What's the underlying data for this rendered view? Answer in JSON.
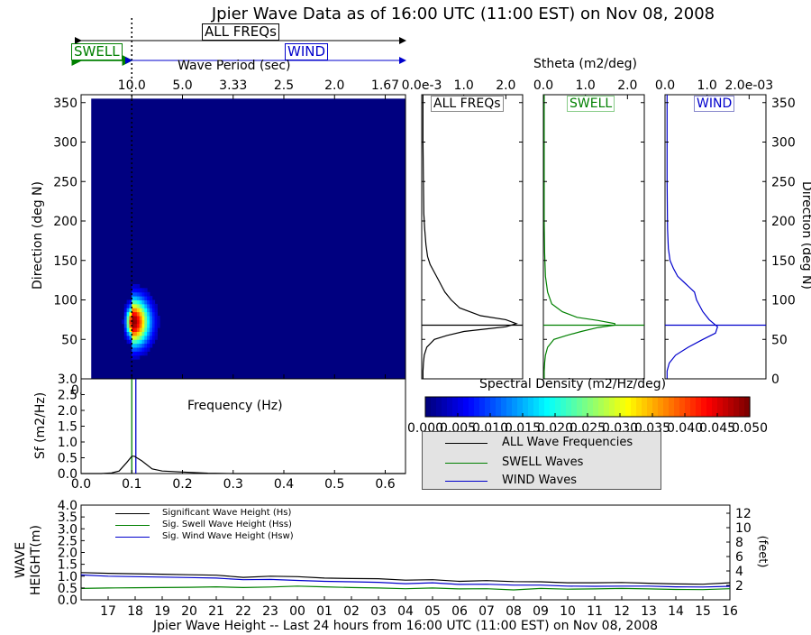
{
  "title": "Jpier Wave Data as of 16:00 UTC (11:00 EST) on Nov 08, 2008",
  "legend_top": {
    "all_label": "ALL FREQs",
    "swell_label": "SWELL",
    "wind_label": "WIND",
    "swell_color": "#008000",
    "wind_color": "#0000cc"
  },
  "chart_data": [
    {
      "id": "directional-spectrum",
      "type": "heatmap",
      "xlabel": "Frequency (Hz)",
      "ylabel": "Direction (deg N)",
      "top_label": "Wave Period (sec)",
      "xlim": [
        0.0,
        0.64
      ],
      "ylim": [
        0,
        360
      ],
      "x_ticks": [
        "0.0",
        "0.1",
        "0.2",
        "0.3",
        "0.4",
        "0.5",
        "0.6"
      ],
      "x_tick_values": [
        0.0,
        0.1,
        0.2,
        0.3,
        0.4,
        0.5,
        0.6
      ],
      "y_ticks": [
        "50",
        "100",
        "150",
        "200",
        "250",
        "300",
        "350"
      ],
      "y_tick_values": [
        50,
        100,
        150,
        200,
        250,
        300,
        350
      ],
      "top_ticks": [
        "10.0",
        "5.0",
        "3.33",
        "2.5",
        "2.0",
        "1.67"
      ],
      "top_tick_values": [
        0.1,
        0.2,
        0.3,
        0.4,
        0.5,
        0.6
      ],
      "swell_wind_split_hz": 0.1,
      "peak": {
        "frequency": 0.1,
        "direction": 70,
        "density": 0.05
      },
      "colorbar": {
        "label": "Spectral Density (m2/Hz/deg)",
        "ticks": [
          "0.000",
          "0.005",
          "0.010",
          "0.015",
          "0.020",
          "0.025",
          "0.030",
          "0.035",
          "0.040",
          "0.045",
          "0.050"
        ],
        "range": [
          0.0,
          0.05
        ],
        "colormap": "jet"
      }
    },
    {
      "id": "stheta-all",
      "type": "line",
      "panel_title": "ALL FREQs",
      "top_label": "Stheta (m2/deg)",
      "x_ticks": [
        "0.0e-3",
        "1.0",
        "2.0"
      ],
      "x_tick_values": [
        0.0,
        1.0,
        2.0
      ],
      "xlim": [
        0,
        2.4
      ],
      "ylim": [
        0,
        360
      ],
      "peak_direction": 68,
      "color": "#000000",
      "series": [
        {
          "x": [
            0.03,
            0.03,
            0.04,
            0.06,
            0.12,
            0.3,
            0.6,
            1.0,
            1.5,
            2.0,
            2.25,
            2.0,
            1.4,
            0.9,
            0.7,
            0.55,
            0.5,
            0.4,
            0.3,
            0.2,
            0.14,
            0.1,
            0.07,
            0.05,
            0.04,
            0.03,
            0.03,
            0.03
          ],
          "y": [
            0,
            10,
            20,
            30,
            40,
            50,
            55,
            60,
            63,
            66,
            70,
            75,
            80,
            90,
            100,
            110,
            115,
            125,
            135,
            145,
            155,
            170,
            190,
            210,
            250,
            300,
            340,
            360
          ]
        }
      ]
    },
    {
      "id": "stheta-swell",
      "type": "line",
      "panel_title": "SWELL",
      "x_ticks": [
        "0.0",
        "1.0",
        "2.0"
      ],
      "x_tick_values": [
        0.0,
        1.0,
        2.0
      ],
      "xlim": [
        0,
        2.4
      ],
      "ylim": [
        0,
        360
      ],
      "peak_direction": 68,
      "color": "#008000",
      "series": [
        {
          "x": [
            0.02,
            0.02,
            0.03,
            0.05,
            0.1,
            0.25,
            0.55,
            0.9,
            1.3,
            1.7,
            1.7,
            1.3,
            0.8,
            0.45,
            0.2,
            0.1,
            0.05,
            0.03,
            0.02,
            0.02,
            0.02
          ],
          "y": [
            0,
            10,
            20,
            30,
            40,
            50,
            55,
            60,
            65,
            68,
            70,
            74,
            78,
            85,
            95,
            110,
            130,
            160,
            200,
            300,
            360
          ]
        }
      ]
    },
    {
      "id": "stheta-wind",
      "type": "line",
      "panel_title": "WIND",
      "x_ticks": [
        "0.0",
        "1.0",
        "2.0e-03"
      ],
      "x_tick_values": [
        0.0,
        1.0,
        2.0
      ],
      "xlim": [
        0,
        2.4
      ],
      "ylim": [
        0,
        360
      ],
      "peak_direction": 68,
      "y2_ticks": [
        "0",
        "50",
        "100",
        "150",
        "200",
        "250",
        "300",
        "350"
      ],
      "y2_tick_values": [
        0,
        50,
        100,
        150,
        200,
        250,
        300,
        350
      ],
      "y2label": "Direction (deg N)",
      "color": "#0000cc",
      "series": [
        {
          "x": [
            0.05,
            0.05,
            0.1,
            0.25,
            0.55,
            0.9,
            1.2,
            1.25,
            1.05,
            0.9,
            0.8,
            0.75,
            0.7,
            0.5,
            0.3,
            0.2,
            0.12,
            0.08,
            0.06,
            0.05,
            0.05,
            0.05
          ],
          "y": [
            0,
            10,
            20,
            30,
            40,
            50,
            58,
            66,
            75,
            85,
            95,
            100,
            110,
            120,
            130,
            140,
            150,
            165,
            190,
            250,
            330,
            360
          ]
        }
      ]
    },
    {
      "id": "frequency-spectrum",
      "type": "line",
      "xlabel": "Frequency (Hz)",
      "ylabel": "Sf (m2/Hz)",
      "xlim": [
        0.0,
        0.64
      ],
      "ylim": [
        0.0,
        3.0
      ],
      "x_ticks": [
        "0.0",
        "0.1",
        "0.2",
        "0.3",
        "0.4",
        "0.5",
        "0.6"
      ],
      "x_tick_values": [
        0.0,
        0.1,
        0.2,
        0.3,
        0.4,
        0.5,
        0.6
      ],
      "y_ticks": [
        "0.0",
        "0.5",
        "1.0",
        "1.5",
        "2.0",
        "2.5",
        "3.0"
      ],
      "y_tick_values": [
        0.0,
        0.5,
        1.0,
        1.5,
        2.0,
        2.5,
        3.0
      ],
      "swell_line_hz": 0.1,
      "wind_line_hz": 0.108,
      "series": [
        {
          "x": [
            0.0,
            0.02,
            0.04,
            0.06,
            0.075,
            0.09,
            0.1,
            0.105,
            0.12,
            0.14,
            0.16,
            0.2,
            0.25,
            0.3,
            0.4,
            0.5,
            0.64
          ],
          "y": [
            0.0,
            0.0,
            0.0,
            0.02,
            0.08,
            0.35,
            0.55,
            0.55,
            0.4,
            0.15,
            0.08,
            0.05,
            0.01,
            0.0,
            0.0,
            0.0,
            0.0
          ]
        }
      ]
    },
    {
      "id": "wave-height",
      "type": "line",
      "xlabel": "Jpier Wave Height -- Last 24 hours from 16:00 UTC (11:00 EST) on Nov 08, 2008",
      "ylabel": "WAVE HEIGHT(m)",
      "y2label": "(feet)",
      "ylim": [
        0.0,
        4.0
      ],
      "y_ticks": [
        "0.0",
        "0.5",
        "1.0",
        "1.5",
        "2.0",
        "2.5",
        "3.0",
        "3.5",
        "4.0"
      ],
      "y_tick_values": [
        0.0,
        0.5,
        1.0,
        1.5,
        2.0,
        2.5,
        3.0,
        3.5,
        4.0
      ],
      "y2_ticks": [
        "2",
        "4",
        "6",
        "8",
        "10",
        "12"
      ],
      "y2_tick_values": [
        2,
        4,
        6,
        8,
        10,
        12
      ],
      "categories": [
        "17",
        "18",
        "19",
        "20",
        "21",
        "22",
        "23",
        "00",
        "01",
        "02",
        "03",
        "04",
        "05",
        "06",
        "07",
        "08",
        "09",
        "10",
        "11",
        "12",
        "13",
        "14",
        "15",
        "16"
      ],
      "series": [
        {
          "name": "Significant Wave Height (Hs)",
          "color": "#000000",
          "x": [
            16,
            17,
            18,
            19,
            20,
            21,
            22,
            23,
            24,
            25,
            26,
            27,
            28,
            29,
            30,
            31,
            32,
            33,
            34,
            35,
            36,
            37,
            38,
            39,
            40
          ],
          "values": [
            1.15,
            1.12,
            1.1,
            1.08,
            1.06,
            1.04,
            0.95,
            1.0,
            0.98,
            0.92,
            0.9,
            0.89,
            0.83,
            0.85,
            0.78,
            0.81,
            0.77,
            0.76,
            0.72,
            0.72,
            0.73,
            0.7,
            0.67,
            0.66,
            0.72
          ]
        },
        {
          "name": "Sig. Swell Wave Height (Hss)",
          "color": "#008000",
          "x": [
            16,
            17,
            18,
            19,
            20,
            21,
            22,
            23,
            24,
            25,
            26,
            27,
            28,
            29,
            30,
            31,
            32,
            33,
            34,
            35,
            36,
            37,
            38,
            39,
            40
          ],
          "values": [
            0.48,
            0.5,
            0.51,
            0.52,
            0.53,
            0.55,
            0.52,
            0.54,
            0.58,
            0.55,
            0.52,
            0.5,
            0.47,
            0.5,
            0.46,
            0.47,
            0.42,
            0.48,
            0.45,
            0.46,
            0.48,
            0.46,
            0.44,
            0.43,
            0.47
          ]
        },
        {
          "name": "Sig. Wind Wave Height (Hsw)",
          "color": "#0000cc",
          "x": [
            16,
            17,
            18,
            19,
            20,
            21,
            22,
            23,
            24,
            25,
            26,
            27,
            28,
            29,
            30,
            31,
            32,
            33,
            34,
            35,
            36,
            37,
            38,
            39,
            40
          ],
          "values": [
            1.05,
            1.0,
            0.98,
            0.96,
            0.94,
            0.92,
            0.85,
            0.86,
            0.82,
            0.78,
            0.76,
            0.74,
            0.68,
            0.72,
            0.65,
            0.66,
            0.62,
            0.62,
            0.58,
            0.57,
            0.58,
            0.58,
            0.55,
            0.54,
            0.57
          ]
        }
      ]
    }
  ],
  "legend_box": {
    "items": [
      {
        "label": "ALL Wave Frequencies",
        "color": "#000000"
      },
      {
        "label": "SWELL Waves",
        "color": "#008000"
      },
      {
        "label": "WIND Waves",
        "color": "#0000cc"
      }
    ]
  }
}
